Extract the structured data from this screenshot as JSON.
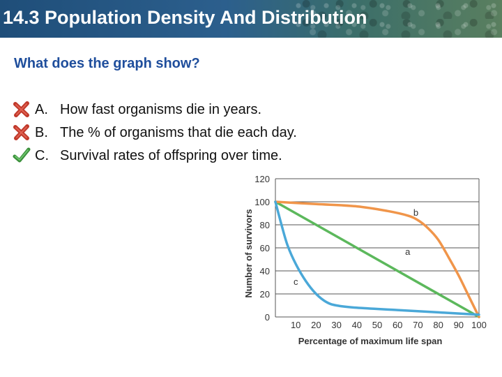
{
  "header": {
    "title": "14.3 Population Density And Distribution"
  },
  "question": "What does the graph show?",
  "answers": [
    {
      "letter": "A.",
      "text": "How fast organisms die in years.",
      "mark": "x-icon",
      "correct": false
    },
    {
      "letter": "B.",
      "text": "The % of organisms that die each day.",
      "mark": "x-icon",
      "correct": false
    },
    {
      "letter": "C.",
      "text": "Survival rates of offspring over time.",
      "mark": "checkmark-icon",
      "correct": true
    }
  ],
  "colors": {
    "question": "#1f4e9c",
    "curve_a": "#5cb85c",
    "curve_b": "#f0954a",
    "curve_c": "#4aa8d8",
    "wrong_mark": "#c0392b",
    "right_mark": "#3a8f3a"
  },
  "chart_data": {
    "type": "line",
    "xlabel": "Percentage of maximum life span",
    "ylabel": "Number of survivors",
    "xlim": [
      0,
      100
    ],
    "ylim": [
      0,
      120
    ],
    "xticks": [
      10,
      20,
      30,
      40,
      50,
      60,
      70,
      80,
      90,
      100
    ],
    "yticks": [
      0,
      20,
      40,
      60,
      80,
      100,
      120
    ],
    "grid": true,
    "series": [
      {
        "name": "a",
        "x": [
          0,
          100
        ],
        "y": [
          100,
          0
        ]
      },
      {
        "name": "b",
        "x": [
          0,
          20,
          40,
          55,
          65,
          70,
          75,
          80,
          85,
          90,
          95,
          100
        ],
        "y": [
          100,
          98,
          96,
          92,
          88,
          84,
          77,
          67,
          52,
          36,
          18,
          0
        ]
      },
      {
        "name": "c",
        "x": [
          0,
          3,
          6,
          10,
          15,
          20,
          25,
          30,
          40,
          60,
          80,
          100
        ],
        "y": [
          100,
          80,
          62,
          46,
          31,
          20,
          13,
          10,
          8,
          6,
          4,
          2
        ]
      }
    ]
  }
}
